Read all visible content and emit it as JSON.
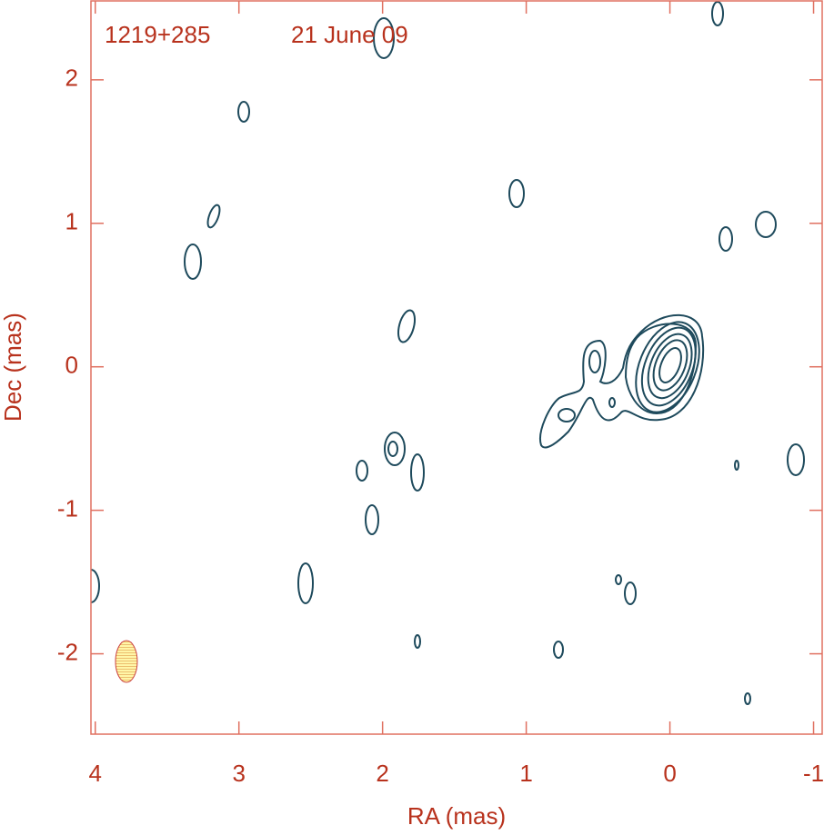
{
  "chart_data": {
    "type": "contour",
    "title": "1219+285",
    "subtitle": "21 June 09",
    "x_label": "RA (mas)",
    "y_label": "Dec (mas)",
    "xlim": [
      4.03,
      -1.06
    ],
    "xticks": [
      4,
      3,
      2,
      1,
      0,
      -1
    ],
    "ylim": [
      -2.56,
      2.55
    ],
    "yticks": [
      -2,
      -1,
      0,
      1,
      2
    ],
    "grid": false,
    "color": "#1e4a5c"
  }
}
